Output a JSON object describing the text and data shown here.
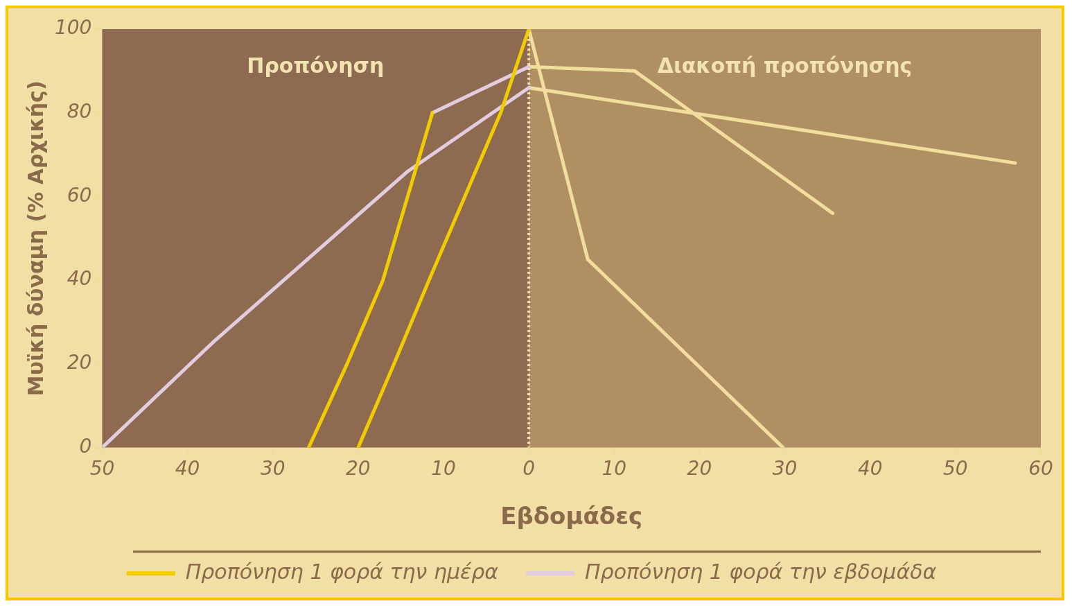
{
  "chart_data": {
    "type": "line",
    "xlabel": "Εβδομάδες",
    "ylabel": "Μυϊκή δύναμη (% Αρχικής)",
    "xlim": [
      -50,
      60
    ],
    "ylim": [
      0,
      100
    ],
    "xticks": [
      {
        "value": -50,
        "label": "50"
      },
      {
        "value": -40,
        "label": "40"
      },
      {
        "value": -30,
        "label": "30"
      },
      {
        "value": -20,
        "label": "20"
      },
      {
        "value": -10,
        "label": "10"
      },
      0,
      10,
      20,
      30,
      40,
      50,
      60
    ],
    "yticks": [
      0,
      20,
      40,
      60,
      80,
      100
    ],
    "series": [
      {
        "name": "Προπόνηση 1 φορά την ημέρα",
        "color": "#f0cc00",
        "x": [
          -25.8,
          -21.3,
          -17.1,
          -14.2,
          -11.3,
          null,
          -20,
          -15.8,
          -11.7,
          -7.5,
          -3.3,
          0
        ],
        "values": [
          0,
          20,
          40,
          60,
          80,
          null,
          0,
          20,
          40,
          60,
          80,
          100
        ]
      },
      {
        "name": "Προπόνηση 1 φορά την εβδομάδα",
        "color": "#e2cde0",
        "x": [
          -50,
          -37.1,
          -14.2,
          0,
          null,
          -11.3,
          0
        ],
        "values": [
          0,
          25,
          66,
          86,
          null,
          80,
          91
        ]
      },
      {
        "color": "#f1dd9c",
        "x": [
          0,
          6.9,
          29.8,
          null,
          0,
          12.4,
          35.6,
          null,
          0,
          57
        ],
        "values": [
          100,
          45,
          0,
          null,
          91,
          90,
          56,
          null,
          86,
          68
        ]
      }
    ],
    "bands": [
      {
        "axis": "x",
        "from": -50,
        "to": 0,
        "label": "Προπόνηση",
        "color": "#8e6b50"
      },
      {
        "axis": "x",
        "from": 0,
        "to": 60,
        "label": "Διακοπή προπόνησης",
        "color": "#b08f63"
      }
    ],
    "ref_lines": [
      {
        "axis": "x",
        "value": 0,
        "color": "#f3e3b0",
        "line_style": "dotted"
      }
    ],
    "grid": false,
    "legend": "bottom",
    "marker": "none",
    "line_style": "solid"
  }
}
